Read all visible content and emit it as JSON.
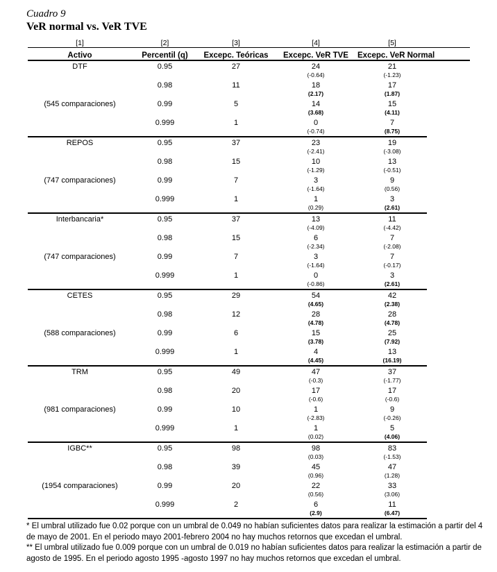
{
  "page": {
    "caption": "Cuadro 9",
    "title": "VeR normal vs. VeR TVE"
  },
  "table": {
    "bracket_labels": [
      "[1]",
      "[2]",
      "[3]",
      "[4]",
      "[5]"
    ],
    "headers": [
      "Activo",
      "Percentil (q)",
      "Excepc. Teóricas",
      "Excepc. VeR TVE",
      "Excepc. VeR Normal"
    ],
    "sections": [
      {
        "asset": "DTF",
        "comparisons": "(545 comparaciones)",
        "rows": [
          {
            "q": "0.95",
            "teoricas": "27",
            "tve": "24",
            "tve_z": "(-0.64)",
            "tve_z_bold": false,
            "normal": "21",
            "normal_z": "(-1.23)",
            "normal_z_bold": false
          },
          {
            "q": "0.98",
            "teoricas": "11",
            "tve": "18",
            "tve_z": "(2.17)",
            "tve_z_bold": true,
            "normal": "17",
            "normal_z": "(1.87)",
            "normal_z_bold": true
          },
          {
            "q": "0.99",
            "teoricas": "5",
            "tve": "14",
            "tve_z": "(3.68)",
            "tve_z_bold": true,
            "normal": "15",
            "normal_z": "(4.11)",
            "normal_z_bold": true
          },
          {
            "q": "0.999",
            "teoricas": "1",
            "tve": "0",
            "tve_z": "(-0.74)",
            "tve_z_bold": false,
            "normal": "7",
            "normal_z": "(8.75)",
            "normal_z_bold": true
          }
        ]
      },
      {
        "asset": "REPOS",
        "comparisons": "(747 comparaciones)",
        "rows": [
          {
            "q": "0.95",
            "teoricas": "37",
            "tve": "23",
            "tve_z": "(-2.41)",
            "tve_z_bold": false,
            "normal": "19",
            "normal_z": "(-3.08)",
            "normal_z_bold": false
          },
          {
            "q": "0.98",
            "teoricas": "15",
            "tve": "10",
            "tve_z": "(-1.29)",
            "tve_z_bold": false,
            "normal": "13",
            "normal_z": "(-0.51)",
            "normal_z_bold": false
          },
          {
            "q": "0.99",
            "teoricas": "7",
            "tve": "3",
            "tve_z": "(-1.64)",
            "tve_z_bold": false,
            "normal": "9",
            "normal_z": "(0.56)",
            "normal_z_bold": false
          },
          {
            "q": "0.999",
            "teoricas": "1",
            "tve": "1",
            "tve_z": "(0.29)",
            "tve_z_bold": false,
            "normal": "3",
            "normal_z": "(2.61)",
            "normal_z_bold": true
          }
        ]
      },
      {
        "asset": "Interbancaria*",
        "comparisons": "(747 comparaciones)",
        "rows": [
          {
            "q": "0.95",
            "teoricas": "37",
            "tve": "13",
            "tve_z": "(-4.09)",
            "tve_z_bold": false,
            "normal": "11",
            "normal_z": "(-4.42)",
            "normal_z_bold": false
          },
          {
            "q": "0.98",
            "teoricas": "15",
            "tve": "6",
            "tve_z": "(-2.34)",
            "tve_z_bold": false,
            "normal": "7",
            "normal_z": "(-2.08)",
            "normal_z_bold": false
          },
          {
            "q": "0.99",
            "teoricas": "7",
            "tve": "3",
            "tve_z": "(-1.64)",
            "tve_z_bold": false,
            "normal": "7",
            "normal_z": "(-0.17)",
            "normal_z_bold": false
          },
          {
            "q": "0.999",
            "teoricas": "1",
            "tve": "0",
            "tve_z": "(-0.86)",
            "tve_z_bold": false,
            "normal": "3",
            "normal_z": "(2.61)",
            "normal_z_bold": true
          }
        ]
      },
      {
        "asset": "CETES",
        "comparisons": "(588 comparaciones)",
        "rows": [
          {
            "q": "0.95",
            "teoricas": "29",
            "tve": "54",
            "tve_z": "(4.65)",
            "tve_z_bold": true,
            "normal": "42",
            "normal_z": "(2.38)",
            "normal_z_bold": true
          },
          {
            "q": "0.98",
            "teoricas": "12",
            "tve": "28",
            "tve_z": "(4.78)",
            "tve_z_bold": true,
            "normal": "28",
            "normal_z": "(4.78)",
            "normal_z_bold": true
          },
          {
            "q": "0.99",
            "teoricas": "6",
            "tve": "15",
            "tve_z": "(3.78)",
            "tve_z_bold": true,
            "normal": "25",
            "normal_z": "(7.92)",
            "normal_z_bold": true
          },
          {
            "q": "0.999",
            "teoricas": "1",
            "tve": "4",
            "tve_z": "(4.45)",
            "tve_z_bold": true,
            "normal": "13",
            "normal_z": "(16.19)",
            "normal_z_bold": true
          }
        ]
      },
      {
        "asset": "TRM",
        "comparisons": "(981 comparaciones)",
        "rows": [
          {
            "q": "0.95",
            "teoricas": "49",
            "tve": "47",
            "tve_z": "(-0.3)",
            "tve_z_bold": false,
            "normal": "37",
            "normal_z": "(-1.77)",
            "normal_z_bold": false
          },
          {
            "q": "0.98",
            "teoricas": "20",
            "tve": "17",
            "tve_z": "(-0.6)",
            "tve_z_bold": false,
            "normal": "17",
            "normal_z": "(-0.6)",
            "normal_z_bold": false
          },
          {
            "q": "0.99",
            "teoricas": "10",
            "tve": "1",
            "tve_z": "(-2.83)",
            "tve_z_bold": false,
            "normal": "9",
            "normal_z": "(-0.26)",
            "normal_z_bold": false
          },
          {
            "q": "0.999",
            "teoricas": "1",
            "tve": "1",
            "tve_z": "(0.02)",
            "tve_z_bold": false,
            "normal": "5",
            "normal_z": "(4.06)",
            "normal_z_bold": true
          }
        ]
      },
      {
        "asset": "IGBC**",
        "comparisons": "(1954 comparaciones)",
        "rows": [
          {
            "q": "0.95",
            "teoricas": "98",
            "tve": "98",
            "tve_z": "(0.03)",
            "tve_z_bold": false,
            "normal": "83",
            "normal_z": "(-1.53)",
            "normal_z_bold": false
          },
          {
            "q": "0.98",
            "teoricas": "39",
            "tve": "45",
            "tve_z": "(0.96)",
            "tve_z_bold": false,
            "normal": "47",
            "normal_z": "(1.28)",
            "normal_z_bold": false
          },
          {
            "q": "0.99",
            "teoricas": "20",
            "tve": "22",
            "tve_z": "(0.56)",
            "tve_z_bold": false,
            "normal": "33",
            "normal_z": "(3.06)",
            "normal_z_bold": false
          },
          {
            "q": "0.999",
            "teoricas": "2",
            "tve": "6",
            "tve_z": "(2.9)",
            "tve_z_bold": true,
            "normal": "11",
            "normal_z": "(6.47)",
            "normal_z_bold": true
          }
        ]
      }
    ],
    "footnotes": [
      "* El umbral utilizado fue 0.02 porque con un umbral de 0.049 no habían suficientes datos para realizar la estimación a partir del 4 de mayo de 2001. En el periodo mayo 2001-febrero 2004 no hay muchos retornos que excedan el umbral.",
      "** El umbral utilizado fue 0.009 porque con un umbral de 0.019 no habían suficientes datos para realizar la estimación a partir de agosto de 1995. En el periodo agosto 1995 -agosto 1997 no hay muchos retornos que excedan el umbral."
    ]
  }
}
